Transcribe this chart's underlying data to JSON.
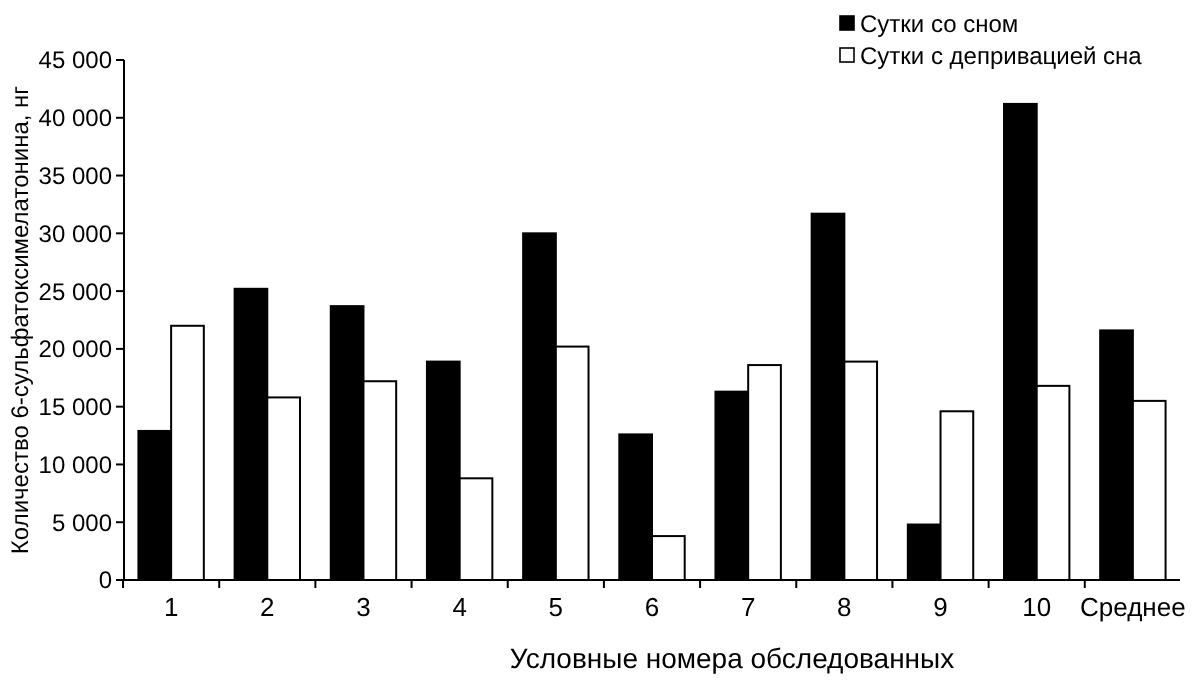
{
  "chart_data": {
    "type": "bar",
    "xlabel": "Условные номера обследованных",
    "ylabel": "Количество  6-сульфатоксимелатонина, нг",
    "categories": [
      "1",
      "2",
      "3",
      "4",
      "5",
      "6",
      "7",
      "8",
      "9",
      "10",
      "Среднее"
    ],
    "series": [
      {
        "name": "Сутки со сном",
        "color": "#000000",
        "values": [
          12900,
          25200,
          23700,
          18900,
          30000,
          12600,
          16300,
          31700,
          4800,
          41200,
          21600
        ]
      },
      {
        "name": "Сутки с депривацией сна",
        "color": "#ffffff",
        "values": [
          22000,
          15800,
          17200,
          8800,
          20200,
          3800,
          18600,
          18900,
          14600,
          16800,
          15500
        ]
      }
    ],
    "ylim": [
      0,
      45000
    ],
    "yticks": [
      0,
      {
        "value": 5000,
        "label": "5 000"
      },
      {
        "value": 10000,
        "label": "10 000"
      },
      {
        "value": 15000,
        "label": "15 000"
      },
      {
        "value": 20000,
        "label": "20 000"
      },
      {
        "value": 25000,
        "label": "25 000"
      },
      {
        "value": 30000,
        "label": "30 000"
      },
      {
        "value": 35000,
        "label": "35 000"
      },
      {
        "value": 40000,
        "label": "40 000"
      },
      {
        "value": 45000,
        "label": "45 000"
      }
    ],
    "legend": "top right",
    "grid": false
  }
}
